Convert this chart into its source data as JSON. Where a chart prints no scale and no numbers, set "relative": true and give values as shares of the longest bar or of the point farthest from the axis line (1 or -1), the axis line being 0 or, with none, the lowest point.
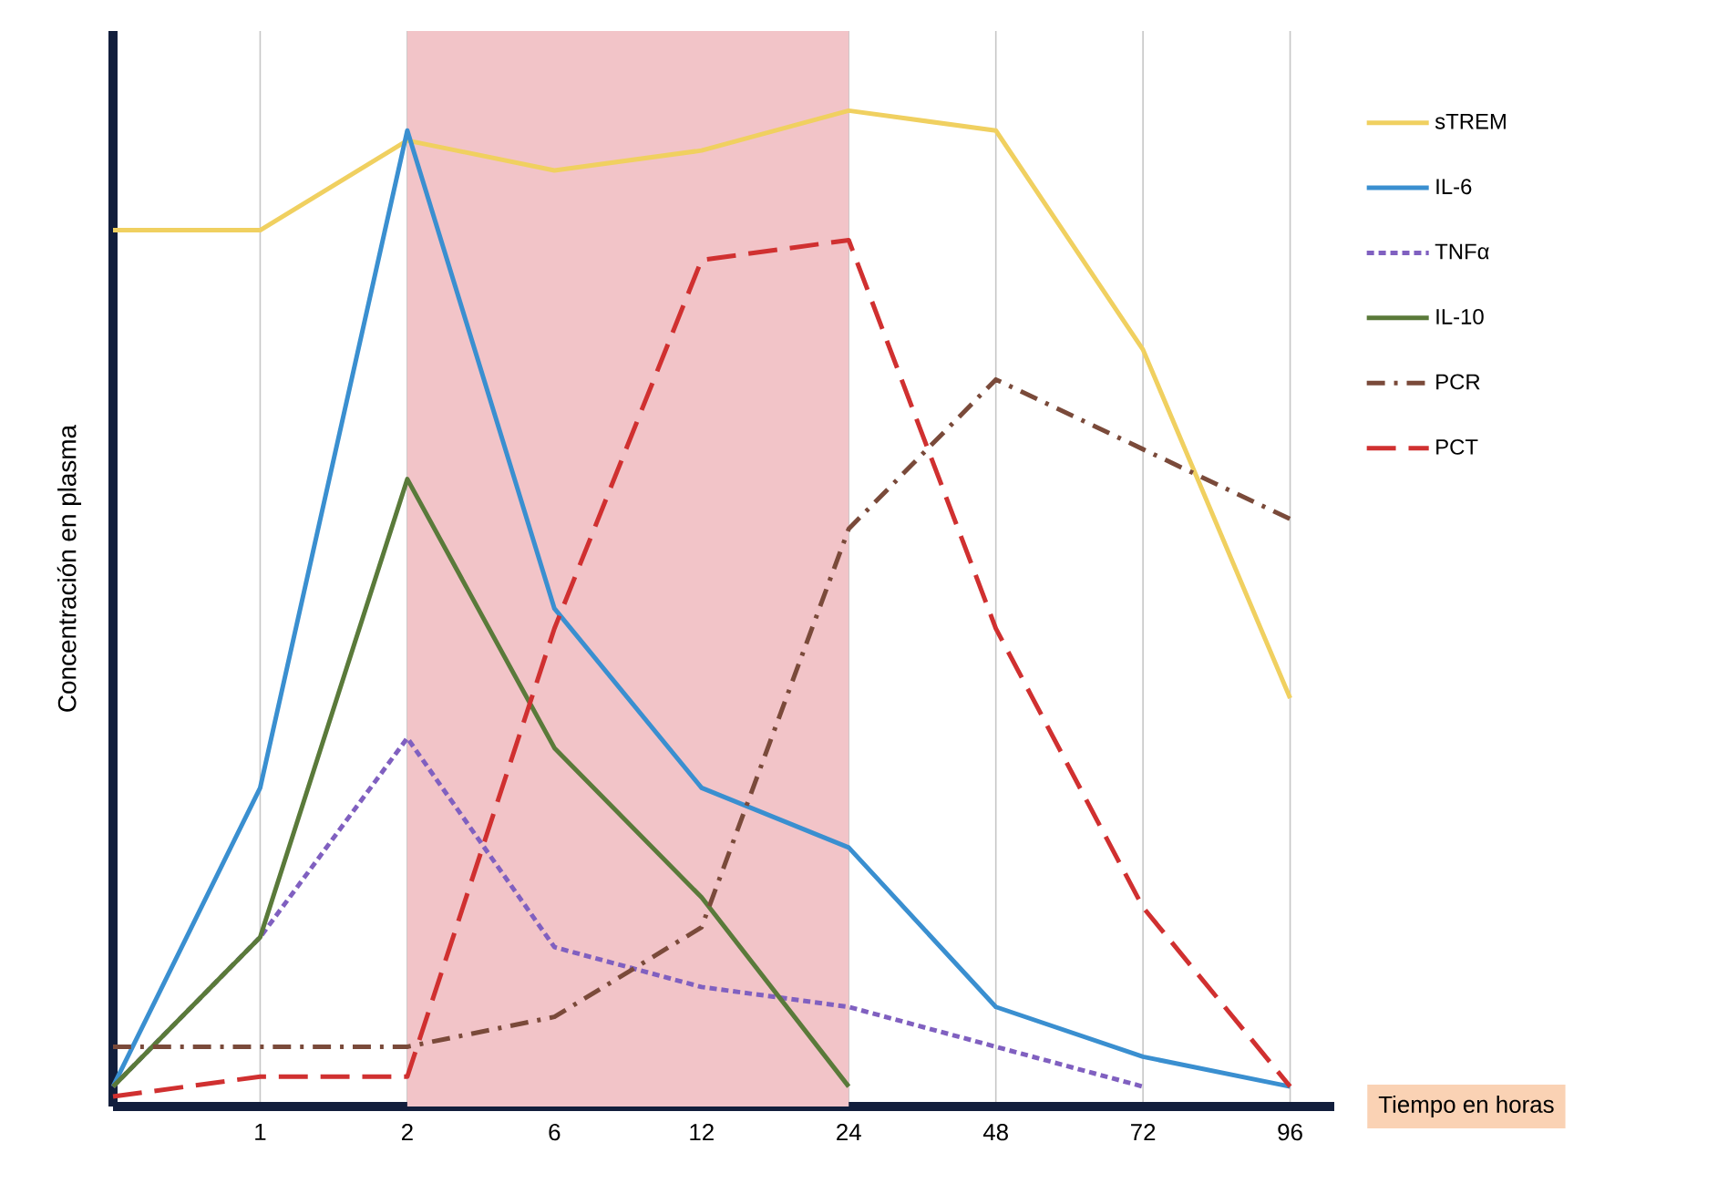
{
  "chart_data": {
    "type": "line",
    "relative": true,
    "ylabel": "Concentración en plasma",
    "xlabel": "Tiempo en horas",
    "categories": [
      null,
      "1",
      "2",
      "6",
      "12",
      "24",
      "48",
      "72",
      "96"
    ],
    "series": [
      {
        "name": "sTREM",
        "color": "#f0d060",
        "line_style": "solid",
        "values": [
          0.88,
          0.88,
          0.97,
          0.94,
          0.96,
          1.0,
          0.98,
          0.76,
          0.41
        ]
      },
      {
        "name": "IL-6",
        "color": "#3a8fd0",
        "line_style": "solid",
        "values": [
          0.02,
          0.32,
          0.98,
          0.5,
          0.32,
          0.26,
          0.1,
          0.05,
          0.02
        ]
      },
      {
        "name": "TNFα",
        "color": "#8060c0",
        "line_style": "dotted",
        "values": [
          0.02,
          0.17,
          0.37,
          0.16,
          0.12,
          0.1,
          0.06,
          0.02,
          null
        ]
      },
      {
        "name": "IL-10",
        "color": "#5a7a3a",
        "line_style": "solid",
        "values": [
          0.02,
          0.17,
          0.63,
          0.36,
          0.21,
          0.02,
          null,
          null,
          null
        ]
      },
      {
        "name": "PCR",
        "color": "#7a4a3a",
        "line_style": "dashdot",
        "values": [
          0.06,
          0.06,
          0.06,
          0.09,
          0.18,
          0.58,
          0.73,
          0.66,
          0.59
        ]
      },
      {
        "name": "PCT",
        "color": "#d03030",
        "line_style": "dashed",
        "values": [
          0.01,
          0.03,
          0.03,
          0.48,
          0.85,
          0.87,
          0.48,
          0.2,
          0.02
        ]
      }
    ],
    "bands": [
      {
        "axis": "x",
        "from": "2",
        "to": "24",
        "color": "#f2c4c8"
      }
    ],
    "grid": "x",
    "legend": "right",
    "tick_labels": "x"
  }
}
